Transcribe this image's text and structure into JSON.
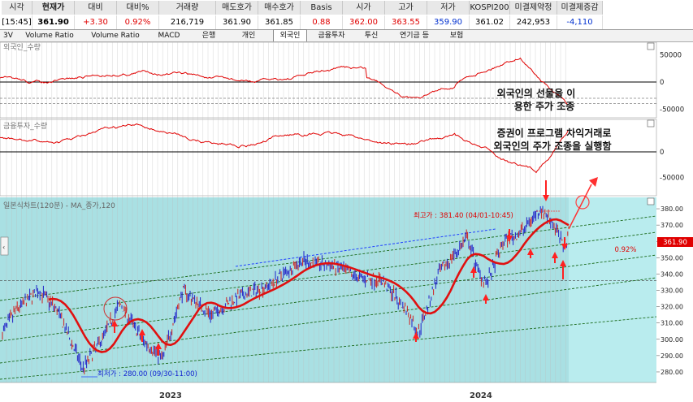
{
  "header": {
    "cells": [
      {
        "label": "시각",
        "value": "[15:45]"
      },
      {
        "label": "현재가",
        "value": "361.90"
      },
      {
        "label": "대비",
        "value": "+3.30"
      },
      {
        "label": "대비%",
        "value": "0.92%"
      },
      {
        "label": "거래량",
        "value": "216,719"
      },
      {
        "label": "매도호가",
        "value": "361.90"
      },
      {
        "label": "매수호가",
        "value": "361.85"
      },
      {
        "label": "Basis",
        "value": "0.88"
      },
      {
        "label": "시가",
        "value": "362.00"
      },
      {
        "label": "고가",
        "value": "363.55"
      },
      {
        "label": "저가",
        "value": "359.90"
      },
      {
        "label": "KOSPI200",
        "value": "361.02"
      },
      {
        "label": "미결제약정",
        "value": "242,953"
      },
      {
        "label": "미결제증감",
        "value": "-4,110"
      }
    ]
  },
  "tabs": [
    "3V",
    "Volume Ratio",
    "Volume Ratio",
    "MACD",
    "은행",
    "개인",
    "외국인",
    "금융투자",
    "투신",
    "연기금 등",
    "보험"
  ],
  "selected_tab": "외국인",
  "panels": {
    "foreign": {
      "title": "외국인_수량",
      "ticks": [
        "50000",
        "0",
        "-50000"
      ]
    },
    "finance": {
      "title": "금융투자_수량",
      "ticks": [
        "0",
        "-50000"
      ]
    },
    "price": {
      "title": "일본식차트(120분) - MA_종가,120",
      "ticks": [
        "380.00",
        "370.00",
        "360.00",
        "350.00",
        "340.00",
        "330.00",
        "320.00",
        "310.00",
        "300.00",
        "290.00",
        "280.00"
      ]
    }
  },
  "annotations": {
    "foreign_note": [
      "외국인의 선물을 이",
      "용한 주가 조종"
    ],
    "finance_note": [
      "증권이 프로그램 차익거래로",
      "외국인의 주가 조종을 실행함"
    ],
    "high_label": "최고가 : 381.40 (04/01-10:45)",
    "low_label": "최저가 : 280.00 (09/30-11:00)"
  },
  "price_tags": {
    "current": "361.90",
    "change_pct": "0.92%"
  },
  "x_labels": [
    "2023",
    "2024"
  ],
  "colors": {
    "price_panel_bg": "#a9e0e3",
    "oscillator_line": "#e00000",
    "ma_line": "#e01010",
    "candles": "#2020c8",
    "grid": "#000000",
    "annotation_red": "#ff2020"
  }
}
